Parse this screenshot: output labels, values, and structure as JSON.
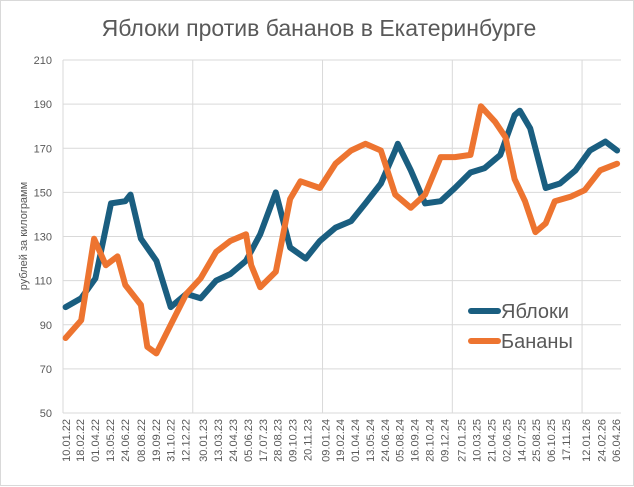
{
  "chart_data": {
    "type": "line",
    "title": "Яблоки против бананов в Екатеринбурге",
    "xlabel": "",
    "ylabel": "рублей за килограмм",
    "ylim": [
      50,
      210
    ],
    "yticks": [
      "50",
      "70",
      "90",
      "110",
      "130",
      "150",
      "170",
      "190",
      "210"
    ],
    "xlim_years": [
      2022.0,
      2026.3
    ],
    "xticks": [
      "10.01.22",
      "18.02.22",
      "01.04.22",
      "13.05.22",
      "24.06.22",
      "08.08.22",
      "19.09.22",
      "31.10.22",
      "12.12.22",
      "30.01.23",
      "13.03.23",
      "24.04.23",
      "05.06.23",
      "17.07.23",
      "28.08.23",
      "09.10.23",
      "20.11.23",
      "09.01.24",
      "19.02.24",
      "01.04.24",
      "13.05.24",
      "24.06.24",
      "05.08.24",
      "16.09.24",
      "28.10.24",
      "09.12.24",
      "27.01.25",
      "10.03.25",
      "21.04.25",
      "02.06.25",
      "14.07.25",
      "25.08.25",
      "06.10.25",
      "17.11.25",
      "12.01.26",
      "24.02.26",
      "06.04.26"
    ],
    "grid": true,
    "legend_position": "bottom-right",
    "series": [
      {
        "name": "Яблоки",
        "color": "#1A5E80",
        "x": [
          2022.02,
          2022.14,
          2022.25,
          2022.37,
          2022.48,
          2022.52,
          2022.6,
          2022.72,
          2022.83,
          2022.95,
          2023.06,
          2023.18,
          2023.29,
          2023.41,
          2023.52,
          2023.64,
          2023.75,
          2023.87,
          2023.98,
          2024.1,
          2024.22,
          2024.33,
          2024.45,
          2024.56,
          2024.58,
          2024.68,
          2024.79,
          2024.91,
          2025.02,
          2025.14,
          2025.25,
          2025.37,
          2025.48,
          2025.52,
          2025.6,
          2025.72,
          2025.83,
          2025.95,
          2026.06,
          2026.18,
          2026.27
        ],
        "values": [
          98,
          102,
          111,
          145,
          146,
          149,
          129,
          119,
          98,
          104,
          102,
          110,
          113,
          119,
          131,
          150,
          125,
          120,
          128,
          134,
          137,
          145,
          154,
          169,
          172,
          160,
          145,
          146,
          152,
          159,
          161,
          167,
          185,
          187,
          179,
          152,
          154,
          160,
          169,
          173,
          169
        ]
      },
      {
        "name": "Бананы",
        "color": "#ED7430",
        "x": [
          2022.02,
          2022.14,
          2022.24,
          2022.33,
          2022.42,
          2022.48,
          2022.6,
          2022.65,
          2022.72,
          2022.83,
          2022.95,
          2023.06,
          2023.18,
          2023.29,
          2023.41,
          2023.45,
          2023.52,
          2023.64,
          2023.75,
          2023.83,
          2023.98,
          2024.1,
          2024.22,
          2024.33,
          2024.45,
          2024.56,
          2024.68,
          2024.79,
          2024.91,
          2025.02,
          2025.14,
          2025.22,
          2025.33,
          2025.41,
          2025.48,
          2025.56,
          2025.64,
          2025.72,
          2025.79,
          2025.91,
          2026.02,
          2026.14,
          2026.27
        ],
        "values": [
          84,
          92,
          129,
          117,
          121,
          108,
          99,
          80,
          77,
          90,
          104,
          111,
          123,
          128,
          131,
          117,
          107,
          114,
          147,
          155,
          152,
          163,
          169,
          172,
          169,
          149,
          143,
          149,
          166,
          166,
          167,
          189,
          182,
          175,
          156,
          146,
          132,
          136,
          146,
          148,
          151,
          160,
          163
        ]
      }
    ]
  }
}
